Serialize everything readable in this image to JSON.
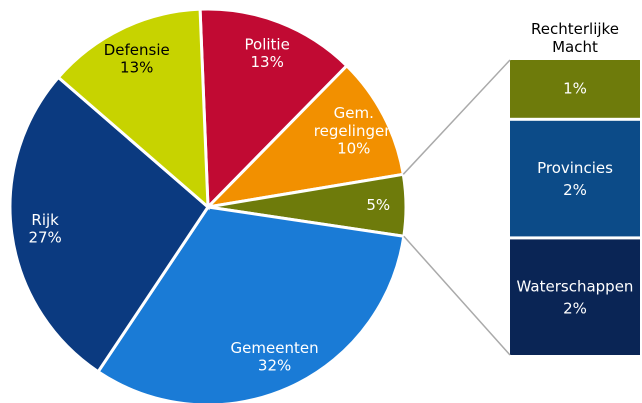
{
  "chart_data": {
    "type": "pie-of-bar",
    "categories": [
      "Politie",
      "Gem. regelingen",
      null,
      "Gemeenten",
      "Rijk",
      "Defensie"
    ],
    "values": [
      13,
      10,
      5,
      32,
      27,
      13
    ],
    "value_labels": [
      "13%",
      "10%",
      "5%",
      "32%",
      "27%",
      "13%"
    ],
    "colors": [
      "#c10a33",
      "#f29000",
      "#6e7b0b",
      "#1a7bd6",
      "#0b3a80",
      "#c7d300"
    ],
    "label_colors": [
      "#ffffff",
      "#ffffff",
      "#ffffff",
      "#ffffff",
      "#ffffff",
      "#000000"
    ],
    "bar": {
      "categories": [
        "Rechterlijke Macht",
        "Provincies",
        "Waterschappen"
      ],
      "values": [
        1,
        2,
        2
      ],
      "value_labels": [
        "1%",
        "2%",
        "2%"
      ],
      "colors": [
        "#6e7b0b",
        "#0c4b88",
        "#0a2555"
      ]
    }
  }
}
